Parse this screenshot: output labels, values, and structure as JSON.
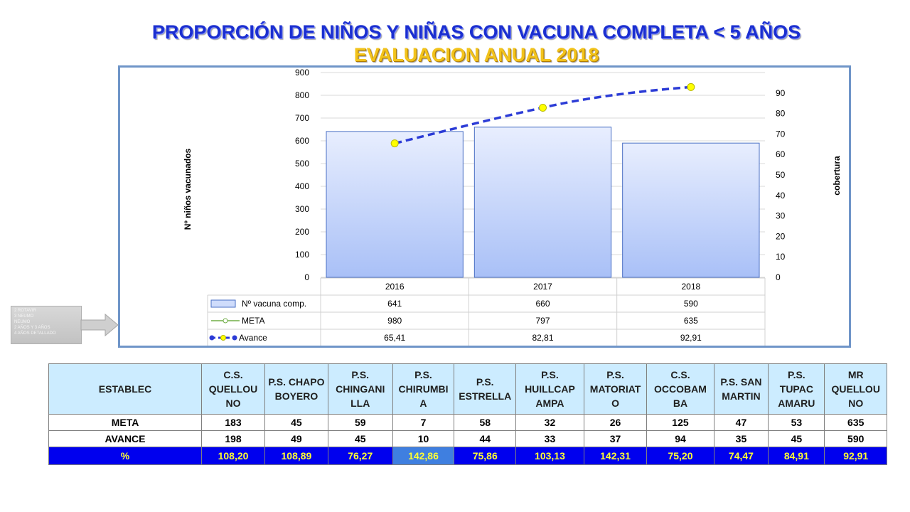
{
  "title_line1": "PROPORCIÓN DE NIÑOS Y NIÑAS CON VACUNA COMPLETA < 5 AÑOS",
  "title_line2": "EVALUACION   ANUAL 2018",
  "sidebar_note": [
    "2 ROTAVIR",
    "3 NEUMO",
    "NEUMO",
    "2 AÑOS Y 3 AÑOS",
    "4 AÑOS DETALLADO"
  ],
  "chart_data": {
    "type": "bar",
    "categories": [
      "2016",
      "2017",
      "2018"
    ],
    "series": [
      {
        "name": "Nº vacuna comp.",
        "type": "bar",
        "axis": "left",
        "values": [
          641,
          660,
          590
        ],
        "color": "#a9c0f5"
      },
      {
        "name": "META",
        "type": "line",
        "axis": "left",
        "values": [
          980,
          797,
          635
        ],
        "color": "#70ad47"
      },
      {
        "name": "Avance",
        "type": "line",
        "axis": "right",
        "values": [
          65.41,
          82.81,
          92.91
        ],
        "color": "#2b3bd6",
        "marker_color": "#ffff00"
      }
    ],
    "y_left_label": "Nº niños vacunados",
    "y_left_lim": [
      0,
      900
    ],
    "y_left_ticks": [
      "0",
      "100",
      "200",
      "300",
      "400",
      "500",
      "600",
      "700",
      "800",
      "900"
    ],
    "y_right_label": "cobertura",
    "y_right_lim": [
      0,
      100
    ],
    "y_right_ticks": [
      "0",
      "10",
      "20",
      "30",
      "40",
      "50",
      "60",
      "70",
      "80",
      "90"
    ],
    "table_values": [
      [
        "641",
        "660",
        "590"
      ],
      [
        "980",
        "797",
        "635"
      ],
      [
        "65,41",
        "82,81",
        "92,91"
      ]
    ],
    "grid": true
  },
  "table": {
    "header_label": "ESTABLEC",
    "columns": [
      "C.S. QUELLOU NO",
      "P.S. CHAPO BOYERO",
      "P.S. CHINGANI LLA",
      "P.S. CHIRUMBI A",
      "P.S. ESTRELLA",
      "P.S. HUILLCAP AMPA",
      "P.S. MATORIAT O",
      "C.S. OCCOBAM BA",
      "P.S. SAN MARTIN",
      "P.S. TUPAC AMARU",
      "MR QUELLOU NO"
    ],
    "rows": [
      {
        "label": "META",
        "values": [
          "183",
          "45",
          "59",
          "7",
          "58",
          "32",
          "26",
          "125",
          "47",
          "53",
          "635"
        ]
      },
      {
        "label": "AVANCE",
        "values": [
          "198",
          "49",
          "45",
          "10",
          "44",
          "33",
          "37",
          "94",
          "35",
          "45",
          "590"
        ]
      },
      {
        "label": "%",
        "values": [
          "108,20",
          "108,89",
          "76,27",
          "142,86",
          "75,86",
          "103,13",
          "142,31",
          "75,20",
          "74,47",
          "84,91",
          "92,91"
        ]
      }
    ]
  }
}
